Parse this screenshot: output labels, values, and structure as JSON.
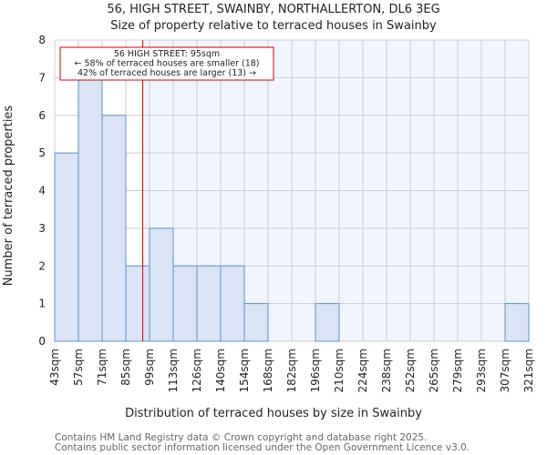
{
  "chart_data": {
    "type": "bar",
    "title": "56, HIGH STREET, SWAINBY, NORTHALLERTON, DL6 3EG",
    "subtitle": "Size of property relative to terraced houses in Swainby",
    "xlabel": "Distribution of terraced houses by size in Swainby",
    "ylabel": "Number of terraced properties",
    "bin_edges": [
      43,
      57,
      71,
      85,
      99,
      113,
      126,
      140,
      154,
      168,
      182,
      196,
      210,
      224,
      238,
      252,
      265,
      279,
      293,
      307,
      321
    ],
    "tick_labels": [
      "43sqm",
      "57sqm",
      "71sqm",
      "85sqm",
      "99sqm",
      "113sqm",
      "126sqm",
      "140sqm",
      "154sqm",
      "168sqm",
      "182sqm",
      "196sqm",
      "210sqm",
      "224sqm",
      "238sqm",
      "252sqm",
      "265sqm",
      "279sqm",
      "293sqm",
      "307sqm",
      "321sqm"
    ],
    "values": [
      5,
      7,
      6,
      2,
      3,
      2,
      2,
      2,
      1,
      0,
      0,
      1,
      0,
      0,
      0,
      0,
      0,
      0,
      0,
      1
    ],
    "ylim": [
      0,
      8
    ],
    "yticks": [
      "0",
      "1",
      "2",
      "3",
      "4",
      "5",
      "6",
      "7",
      "8"
    ],
    "grid": true,
    "marker": {
      "value": 95,
      "color": "#cc0000"
    },
    "annotation": [
      "56 HIGH STREET: 95sqm",
      "← 58% of terraced houses are smaller (18)",
      "42% of terraced houses are larger (13) →"
    ],
    "colors": {
      "bar_fill": "#dae4f4",
      "bar_edge": "#5b8fd6",
      "right_bg": "#f1f5fd",
      "grid": "#cccccc"
    }
  },
  "footer": [
    "Contains HM Land Registry data © Crown copyright and database right 2025.",
    "Contains public sector information licensed under the Open Government Licence v3.0."
  ]
}
